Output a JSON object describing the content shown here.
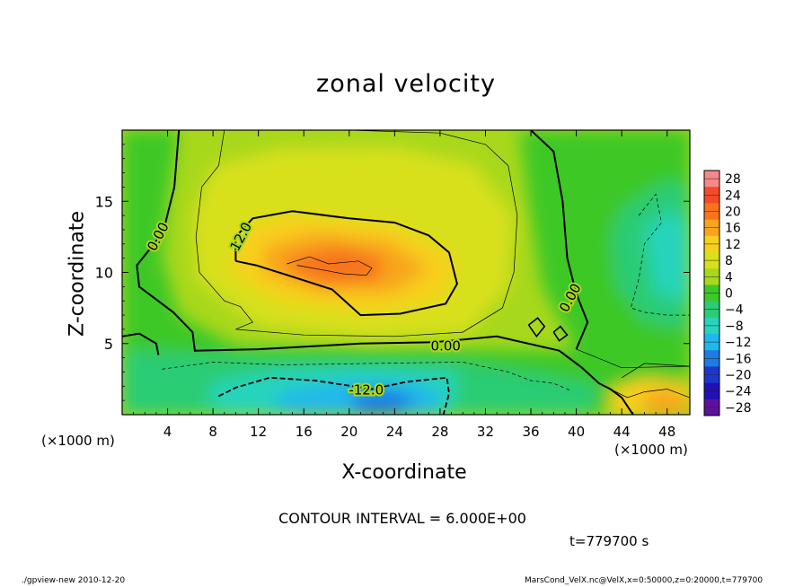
{
  "chart_data": {
    "type": "heatmap",
    "title": "zonal velocity",
    "xlabel": "X-coordinate",
    "ylabel": "Z-coordinate",
    "x_unit_label": "(×1000 m)",
    "xlim": [
      0,
      50
    ],
    "ylim": [
      0,
      20
    ],
    "x_ticks": [
      4,
      8,
      12,
      16,
      20,
      24,
      28,
      32,
      36,
      40,
      44,
      48
    ],
    "y_ticks": [
      5,
      10,
      15
    ],
    "colorbar": {
      "levels": [
        28,
        24,
        20,
        16,
        12,
        8,
        4,
        0,
        -4,
        -8,
        -12,
        -16,
        -20,
        -24,
        -28
      ],
      "colors": [
        "#f7888a",
        "#f44a2c",
        "#f7731c",
        "#f8a51c",
        "#f8cf1c",
        "#d8e01c",
        "#a8d81c",
        "#3cc828",
        "#2ccc74",
        "#28d4bc",
        "#20b8ec",
        "#1c7ce4",
        "#1c38cc",
        "#2010b8",
        "#60109c"
      ]
    },
    "contour_labels": [
      {
        "text": "0.00",
        "x": 3.2,
        "y": 12.5
      },
      {
        "text": "12.0",
        "x": 10.5,
        "y": 12.5
      },
      {
        "text": "0.00",
        "x": 28.5,
        "y": 4.8
      },
      {
        "text": "-12.0",
        "x": 21.5,
        "y": 1.7
      },
      {
        "text": "0.00",
        "x": 39.5,
        "y": 8.2
      }
    ],
    "contour_interval_text": "CONTOUR INTERVAL = 6.000E+00",
    "time_text": "t=779700 s",
    "grid": false,
    "legend": "right colorbar"
  },
  "footer": {
    "left": "./gpview-new  2010-12-20",
    "right": "MarsCond_VelX.nc@VelX,x=0:50000,z=0:20000,t=779700"
  }
}
